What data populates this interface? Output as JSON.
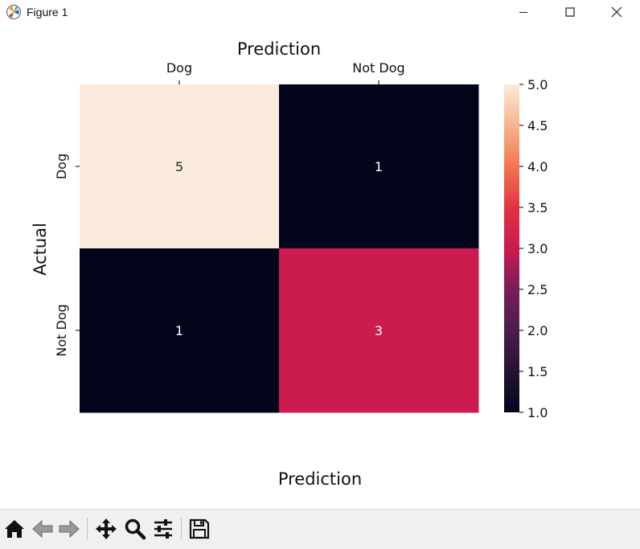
{
  "window": {
    "title": "Figure 1",
    "controls": {
      "minimize": "minimize-icon",
      "maximize": "maximize-icon",
      "close": "close-icon"
    }
  },
  "toolbar": {
    "buttons": [
      {
        "name": "home-button",
        "icon": "home-icon",
        "enabled": true
      },
      {
        "name": "back-button",
        "icon": "arrow-left-icon",
        "enabled": false
      },
      {
        "name": "forward-button",
        "icon": "arrow-right-icon",
        "enabled": false
      },
      {
        "name": "pan-button",
        "icon": "move-icon",
        "enabled": true
      },
      {
        "name": "zoom-button",
        "icon": "magnifier-icon",
        "enabled": true
      },
      {
        "name": "subplots-button",
        "icon": "sliders-icon",
        "enabled": true
      },
      {
        "name": "save-button",
        "icon": "floppy-disk-icon",
        "enabled": true
      }
    ],
    "message": ""
  },
  "chart_data": {
    "type": "heatmap",
    "title": "Prediction",
    "xlabel": "Prediction",
    "ylabel": "Actual",
    "x_categories": [
      "Dog",
      "Not Dog"
    ],
    "y_categories": [
      "Dog",
      "Not Dog"
    ],
    "values": [
      [
        5,
        1
      ],
      [
        1,
        3
      ]
    ],
    "annotations": [
      [
        "5",
        "1"
      ],
      [
        "1",
        "3"
      ]
    ],
    "x_ticks_position": "top",
    "colormap": "rocket",
    "colorbar": {
      "range": [
        1.0,
        5.0
      ],
      "ticks": [
        1.0,
        1.5,
        2.0,
        2.5,
        3.0,
        3.5,
        4.0,
        4.5,
        5.0
      ],
      "tick_labels": [
        "1.0",
        "1.5",
        "2.0",
        "2.5",
        "3.0",
        "3.5",
        "4.0",
        "4.5",
        "5.0"
      ],
      "placement": "right"
    },
    "colors": {
      "value_5": "#faebdd",
      "value_3": "#cb1b4f",
      "value_1": "#03051a",
      "text_light": "#ffffff",
      "text_dark": "#262626"
    }
  }
}
